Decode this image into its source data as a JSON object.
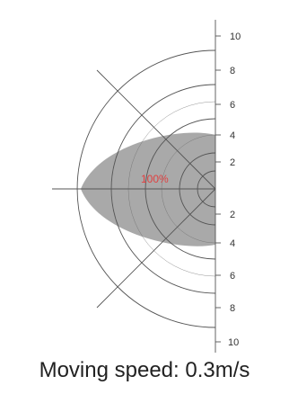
{
  "diagram": {
    "range_ticks_upper": [
      "10",
      "8",
      "6",
      "4",
      "2"
    ],
    "range_ticks_lower": [
      "2",
      "4",
      "6",
      "8",
      "10"
    ],
    "center_label": "100%",
    "colors": {
      "zone_fill": "#9a9a9a",
      "center_label": "#e04040",
      "lines": "#555555"
    }
  },
  "caption": "Moving speed: 0.3m/s"
}
